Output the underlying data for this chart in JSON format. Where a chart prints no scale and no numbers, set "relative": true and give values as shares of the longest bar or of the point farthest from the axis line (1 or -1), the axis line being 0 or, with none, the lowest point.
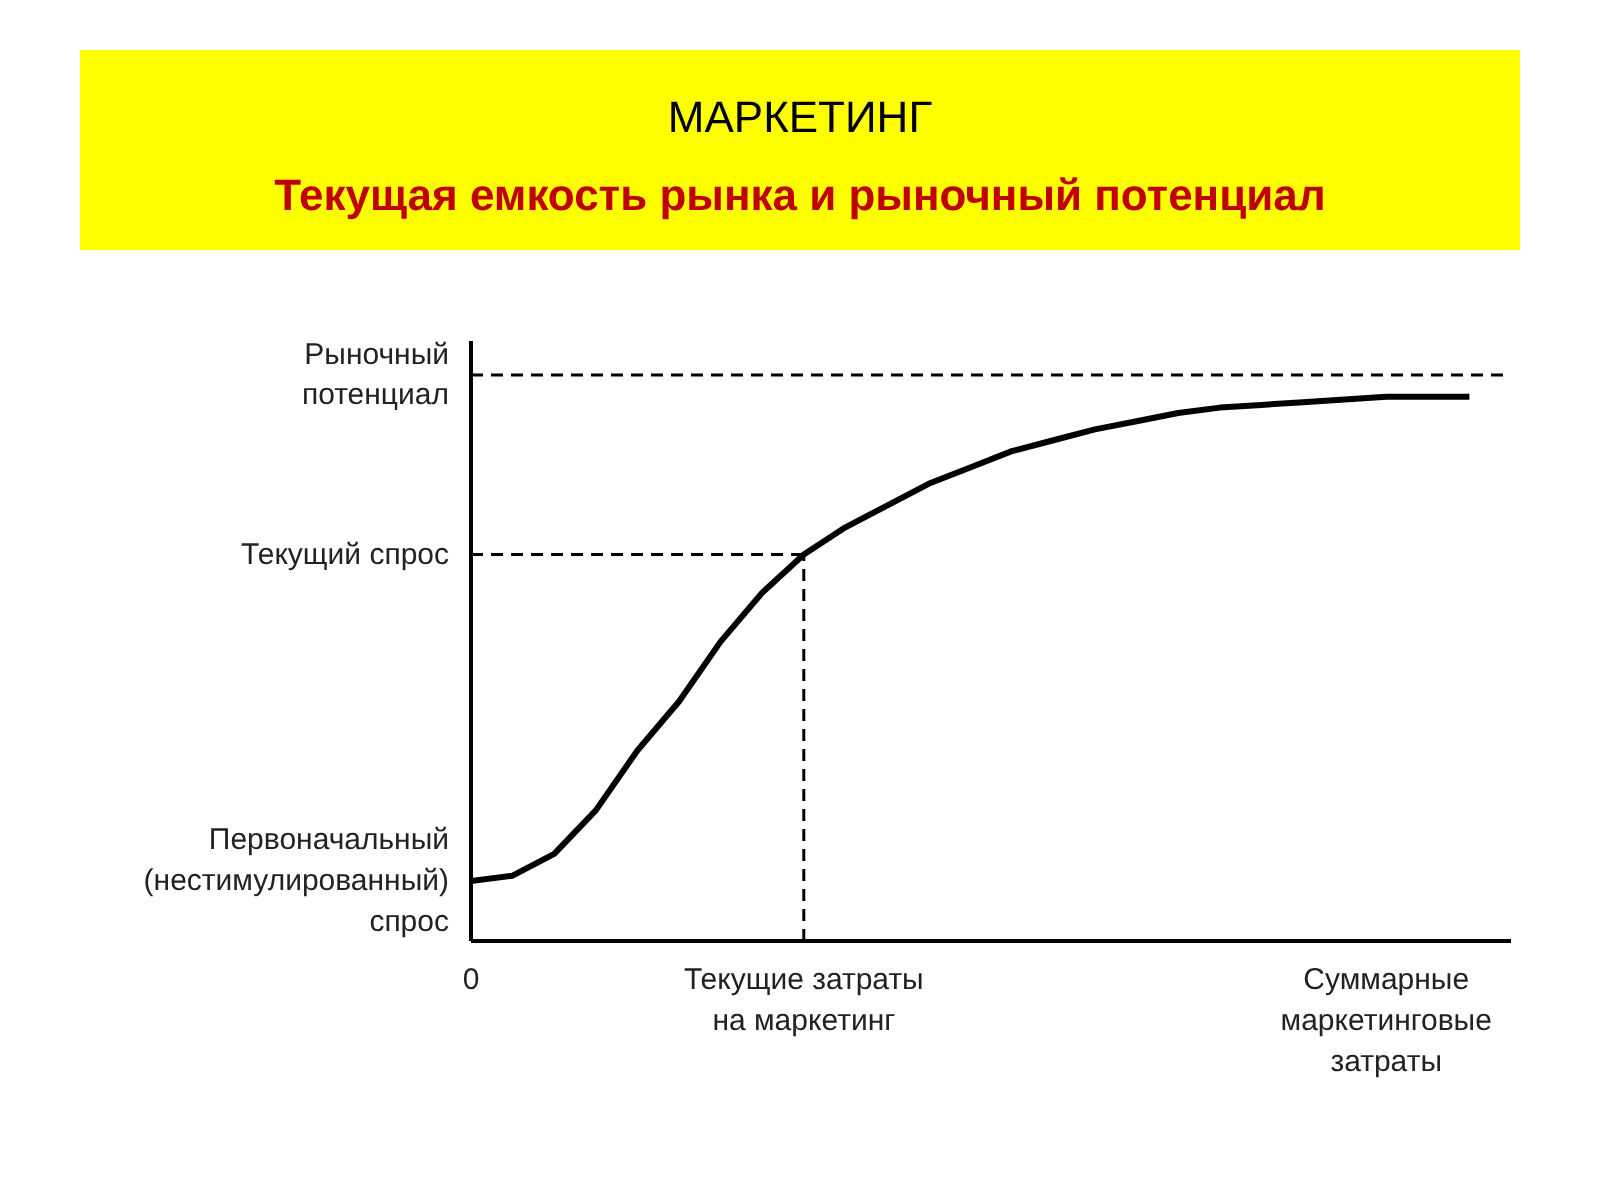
{
  "chart_data": {
    "type": "line",
    "title": "МАРКЕТИНГ",
    "subtitle": "Текущая емкость рынка и рыночный потенциал",
    "relative": true,
    "grid": false,
    "marker": "none",
    "line_style": "solid",
    "categories": [
      "0",
      null,
      null,
      null,
      null,
      null,
      null,
      null,
      "Текущие затраты на маркетинг",
      null,
      null,
      null,
      null,
      null,
      null,
      null,
      null,
      null,
      null,
      null,
      null,
      null,
      "Суммарные маркетинговые затраты",
      null,
      null
    ],
    "series": [
      {
        "color": "#000000",
        "values": [
          0.11,
          0.12,
          0.16,
          0.24,
          0.35,
          0.44,
          0.55,
          0.64,
          0.71,
          0.76,
          0.8,
          0.84,
          0.87,
          0.9,
          0.92,
          0.94,
          0.955,
          0.97,
          0.98,
          0.985,
          0.99,
          0.995,
          1,
          1,
          1
        ]
      }
    ],
    "ref_lines": [
      {
        "axis": "y",
        "value": 1.04,
        "label": "Рыночный потенциал",
        "line_style": "dashed"
      },
      {
        "axis": "y",
        "value": 0.71,
        "label": "Текущий спрос",
        "line_style": "dashed"
      },
      {
        "axis": "x",
        "value": "Текущие затраты на маркетинг",
        "line_style": "dashed"
      }
    ],
    "annotations": [
      "Первоначальный (нестимулированный) спрос"
    ]
  }
}
